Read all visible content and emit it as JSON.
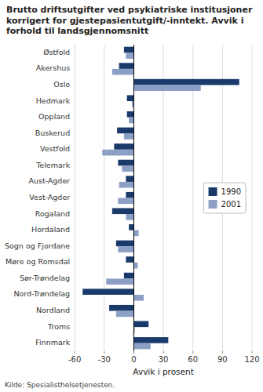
{
  "chart_data": {
    "type": "bar",
    "orientation": "horizontal",
    "title": "Brutto driftsutgifter ved psykiatriske institusjoner korrigert for gjestepasientutgift/-inntekt. Avvik i forhold til landsgjennomsnitt",
    "categories": [
      "Østfold",
      "Akershus",
      "Oslo",
      "Hedmark",
      "Oppland",
      "Buskerud",
      "Vestfold",
      "Telemark",
      "Aust-Agder",
      "Vest-Agder",
      "Rogaland",
      "Hordaland",
      "Sogn og Fjordane",
      "Møre og Romsdal",
      "Sør-Trøndelag",
      "Nord-Trøndelag",
      "Nordland",
      "Troms",
      "Finnmark"
    ],
    "series": [
      {
        "name": "1990",
        "color": "#1a3a6b",
        "values": [
          -10,
          -15,
          107,
          -7,
          -7,
          -17,
          -20,
          -16,
          -8,
          -8,
          -22,
          -5,
          -18,
          -8,
          -10,
          -52,
          -25,
          15,
          35
        ]
      },
      {
        "name": "2001",
        "color": "#8c9fc5",
        "values": [
          -8,
          -22,
          68,
          -2,
          -5,
          -10,
          -32,
          -12,
          -15,
          -16,
          -8,
          5,
          -16,
          4,
          -28,
          10,
          -18,
          1,
          17
        ]
      }
    ],
    "xlabel": "Avvik i prosent",
    "xlim": [
      -60,
      120
    ],
    "xticks": [
      -60,
      -30,
      0,
      30,
      60,
      90,
      120
    ],
    "grid": true,
    "legend": "center right",
    "source": "Kilde: Spesialisthelsetjenesten."
  }
}
